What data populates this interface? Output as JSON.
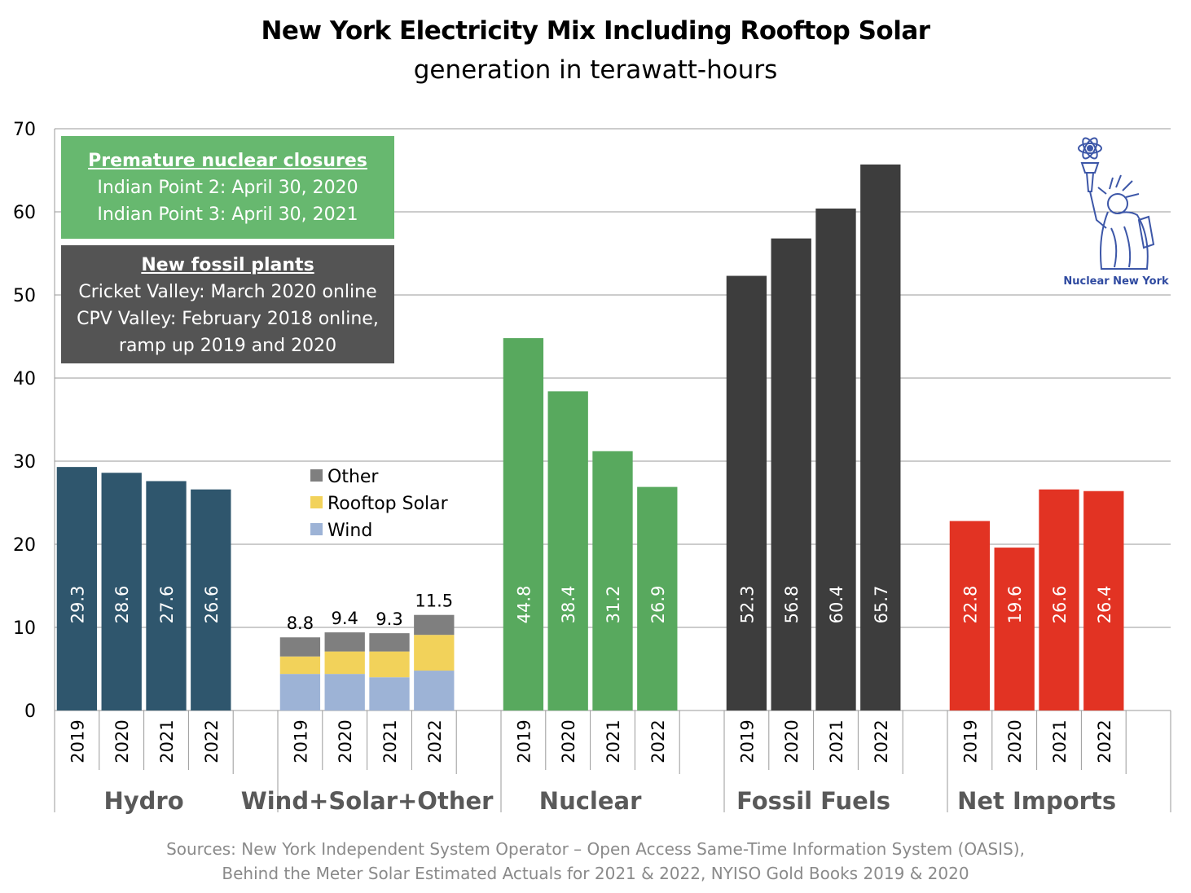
{
  "title": "New York Electricity Mix Including Rooftop Solar",
  "subtitle": "generation in terawatt-hours",
  "annotations": {
    "nuclear_box": {
      "heading": "Premature nuclear closures",
      "lines": [
        "Indian Point 2: April 30, 2020",
        "Indian Point 3: April 30, 2021"
      ],
      "color": "#67b86f"
    },
    "fossil_box": {
      "heading": "New fossil plants",
      "lines": [
        "Cricket Valley: March 2020 online",
        "CPV Valley: February 2018 online,",
        "ramp up 2019 and 2020"
      ],
      "color": "#545454"
    }
  },
  "logo": {
    "icon": "statue-of-liberty-atom-icon",
    "caption": "Nuclear New York"
  },
  "sources": [
    "Sources: New York Independent System Operator – Open Access Same-Time Information System (OASIS),",
    "Behind the Meter Solar Estimated Actuals for 2021 & 2022, NYISO Gold Books 2019 & 2020"
  ],
  "chart_data": {
    "type": "bar",
    "title": "New York Electricity Mix Including Rooftop Solar",
    "subtitle": "generation in terawatt-hours",
    "xlabel": "",
    "ylabel": "",
    "ylim": [
      0,
      70
    ],
    "yticks": [
      0,
      10,
      20,
      30,
      40,
      50,
      60,
      70
    ],
    "grid": true,
    "years": [
      "2019",
      "2020",
      "2021",
      "2022"
    ],
    "groups": [
      {
        "name": "Hydro",
        "color": "#2f566d",
        "values": [
          29.3,
          28.6,
          27.6,
          26.6
        ],
        "label_inside": true
      },
      {
        "name": "Wind+Solar+Other",
        "stacked": true,
        "totals": [
          8.8,
          9.4,
          9.3,
          11.5
        ],
        "series": [
          {
            "name": "Wind",
            "color": "#9db3d6",
            "values": [
              4.4,
              4.4,
              4.0,
              4.8
            ]
          },
          {
            "name": "Rooftop Solar",
            "color": "#f2d25a",
            "values": [
              2.1,
              2.7,
              3.1,
              4.3
            ]
          },
          {
            "name": "Other",
            "color": "#7f7f7f",
            "values": [
              2.3,
              2.3,
              2.2,
              2.4
            ]
          }
        ]
      },
      {
        "name": "Nuclear",
        "color": "#58a95e",
        "values": [
          44.8,
          38.4,
          31.2,
          26.9
        ],
        "label_inside": true
      },
      {
        "name": "Fossil Fuels",
        "color": "#3d3d3d",
        "values": [
          52.3,
          56.8,
          60.4,
          65.7
        ],
        "label_inside": true
      },
      {
        "name": "Net Imports",
        "color": "#e23323",
        "values": [
          22.8,
          19.6,
          26.6,
          26.4
        ],
        "label_inside": true
      }
    ],
    "legend": {
      "entries": [
        "Other",
        "Rooftop Solar",
        "Wind"
      ],
      "placement": "center-left, above Wind+Solar+Other bars"
    }
  }
}
